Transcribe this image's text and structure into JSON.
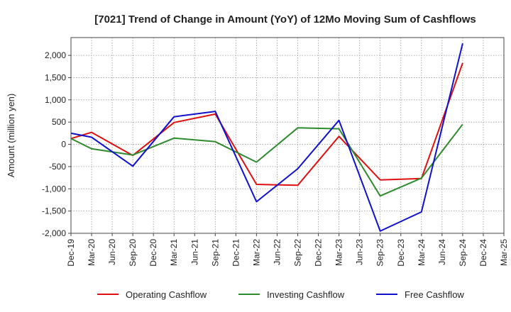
{
  "chart_data": {
    "type": "line",
    "title": "[7021]  Trend of Change in Amount (YoY) of 12Mo Moving Sum of Cashflows",
    "xlabel": "",
    "ylabel": "Amount (million yen)",
    "ylim": [
      -2000,
      2400
    ],
    "yticks": [
      -2000,
      -1500,
      -1000,
      -500,
      0,
      500,
      1000,
      1500,
      2000
    ],
    "ytick_labels": [
      "-2,000",
      "-1,500",
      "-1,000",
      "-500",
      "0",
      "500",
      "1,000",
      "1,500",
      "2,000"
    ],
    "categories": [
      "Dec-19",
      "Mar-20",
      "Jun-20",
      "Sep-20",
      "Dec-20",
      "Mar-21",
      "Jun-21",
      "Sep-21",
      "Dec-21",
      "Mar-22",
      "Jun-22",
      "Sep-22",
      "Dec-22",
      "Mar-23",
      "Jun-23",
      "Sep-23",
      "Dec-23",
      "Mar-24",
      "Jun-24",
      "Sep-24",
      "Dec-24",
      "Mar-25"
    ],
    "grid": true,
    "legend_position": "bottom",
    "series": [
      {
        "name": "Operating Cashflow",
        "color": "#dd1111",
        "values": [
          130,
          270,
          null,
          -250,
          null,
          490,
          null,
          680,
          null,
          -900,
          null,
          -920,
          null,
          180,
          null,
          -800,
          null,
          -770,
          null,
          1830,
          null,
          null
        ]
      },
      {
        "name": "Investing Cashflow",
        "color": "#2e8b2e",
        "values": [
          130,
          -100,
          null,
          -240,
          null,
          140,
          null,
          60,
          null,
          -400,
          null,
          370,
          null,
          350,
          null,
          -1160,
          null,
          -760,
          null,
          450,
          null,
          null
        ]
      },
      {
        "name": "Free Cashflow",
        "color": "#1111cc",
        "values": [
          250,
          160,
          null,
          -490,
          null,
          620,
          null,
          740,
          null,
          -1290,
          null,
          -550,
          null,
          540,
          null,
          -1950,
          null,
          -1520,
          null,
          2270,
          null,
          null
        ]
      }
    ]
  }
}
